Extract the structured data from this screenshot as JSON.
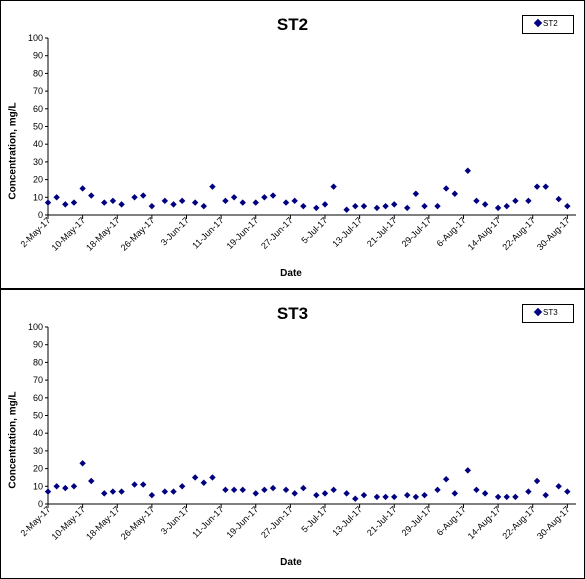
{
  "chart_data": [
    {
      "type": "scatter",
      "title": "ST2",
      "xlabel": "Date",
      "ylabel": "Concentration, mg/L",
      "ylim": [
        0,
        100
      ],
      "yticks": [
        0,
        10,
        20,
        30,
        40,
        50,
        60,
        70,
        80,
        90,
        100
      ],
      "xticks": [
        "2-May-17",
        "10-May-17",
        "18-May-17",
        "26-May-17",
        "3-Jun-17",
        "11-Jun-17",
        "19-Jun-17",
        "27-Jun-17",
        "5-Jul-17",
        "13-Jul-17",
        "21-Jul-17",
        "29-Jul-17",
        "6-Aug-17",
        "14-Aug-17",
        "22-Aug-17",
        "30-Aug-17"
      ],
      "xlim": [
        "2-May-17",
        "1-Sep-17"
      ],
      "legend": "top-right",
      "marker_color": "#000080",
      "series": [
        {
          "name": "ST2",
          "x": [
            "2-May-17",
            "4-May-17",
            "6-May-17",
            "8-May-17",
            "10-May-17",
            "12-May-17",
            "15-May-17",
            "17-May-17",
            "19-May-17",
            "22-May-17",
            "24-May-17",
            "26-May-17",
            "29-May-17",
            "31-May-17",
            "2-Jun-17",
            "5-Jun-17",
            "7-Jun-17",
            "9-Jun-17",
            "12-Jun-17",
            "14-Jun-17",
            "16-Jun-17",
            "19-Jun-17",
            "21-Jun-17",
            "23-Jun-17",
            "26-Jun-17",
            "28-Jun-17",
            "30-Jun-17",
            "3-Jul-17",
            "5-Jul-17",
            "7-Jul-17",
            "10-Jul-17",
            "12-Jul-17",
            "14-Jul-17",
            "17-Jul-17",
            "19-Jul-17",
            "21-Jul-17",
            "24-Jul-17",
            "26-Jul-17",
            "28-Jul-17",
            "31-Jul-17",
            "2-Aug-17",
            "4-Aug-17",
            "7-Aug-17",
            "9-Aug-17",
            "11-Aug-17",
            "14-Aug-17",
            "16-Aug-17",
            "18-Aug-17",
            "21-Aug-17",
            "23-Aug-17",
            "25-Aug-17",
            "28-Aug-17",
            "30-Aug-17"
          ],
          "y": [
            7,
            10,
            6,
            7,
            15,
            11,
            7,
            8,
            6,
            10,
            11,
            5,
            8,
            6,
            8,
            7,
            5,
            16,
            8,
            10,
            7,
            7,
            10,
            11,
            7,
            8,
            5,
            4,
            6,
            16,
            3,
            5,
            5,
            4,
            5,
            6,
            4,
            12,
            5,
            5,
            15,
            12,
            25,
            8,
            6,
            4,
            5,
            8,
            8,
            16,
            16,
            9,
            5
          ]
        }
      ]
    },
    {
      "type": "scatter",
      "title": "ST3",
      "xlabel": "Date",
      "ylabel": "Concentration, mg/L",
      "ylim": [
        0,
        100
      ],
      "yticks": [
        0,
        10,
        20,
        30,
        40,
        50,
        60,
        70,
        80,
        90,
        100
      ],
      "xticks": [
        "2-May-17",
        "10-May-17",
        "18-May-17",
        "26-May-17",
        "3-Jun-17",
        "11-Jun-17",
        "19-Jun-17",
        "27-Jun-17",
        "5-Jul-17",
        "13-Jul-17",
        "21-Jul-17",
        "29-Jul-17",
        "6-Aug-17",
        "14-Aug-17",
        "22-Aug-17",
        "30-Aug-17"
      ],
      "xlim": [
        "2-May-17",
        "1-Sep-17"
      ],
      "legend": "top-right",
      "marker_color": "#000080",
      "series": [
        {
          "name": "ST3",
          "x": [
            "2-May-17",
            "4-May-17",
            "6-May-17",
            "8-May-17",
            "10-May-17",
            "12-May-17",
            "15-May-17",
            "17-May-17",
            "19-May-17",
            "22-May-17",
            "24-May-17",
            "26-May-17",
            "29-May-17",
            "31-May-17",
            "2-Jun-17",
            "5-Jun-17",
            "7-Jun-17",
            "9-Jun-17",
            "12-Jun-17",
            "14-Jun-17",
            "16-Jun-17",
            "19-Jun-17",
            "21-Jun-17",
            "23-Jun-17",
            "26-Jun-17",
            "28-Jun-17",
            "30-Jun-17",
            "3-Jul-17",
            "5-Jul-17",
            "7-Jul-17",
            "10-Jul-17",
            "12-Jul-17",
            "14-Jul-17",
            "17-Jul-17",
            "19-Jul-17",
            "21-Jul-17",
            "24-Jul-17",
            "26-Jul-17",
            "28-Jul-17",
            "31-Jul-17",
            "2-Aug-17",
            "4-Aug-17",
            "7-Aug-17",
            "9-Aug-17",
            "11-Aug-17",
            "14-Aug-17",
            "16-Aug-17",
            "18-Aug-17",
            "21-Aug-17",
            "23-Aug-17",
            "25-Aug-17",
            "28-Aug-17",
            "30-Aug-17"
          ],
          "y": [
            7,
            10,
            9,
            10,
            23,
            13,
            6,
            7,
            7,
            11,
            11,
            5,
            7,
            7,
            10,
            15,
            12,
            15,
            8,
            8,
            8,
            6,
            8,
            9,
            8,
            6,
            9,
            5,
            6,
            8,
            6,
            3,
            5,
            4,
            4,
            4,
            5,
            4,
            5,
            8,
            14,
            6,
            19,
            8,
            6,
            4,
            4,
            4,
            7,
            13,
            5,
            10,
            7
          ]
        }
      ]
    }
  ]
}
